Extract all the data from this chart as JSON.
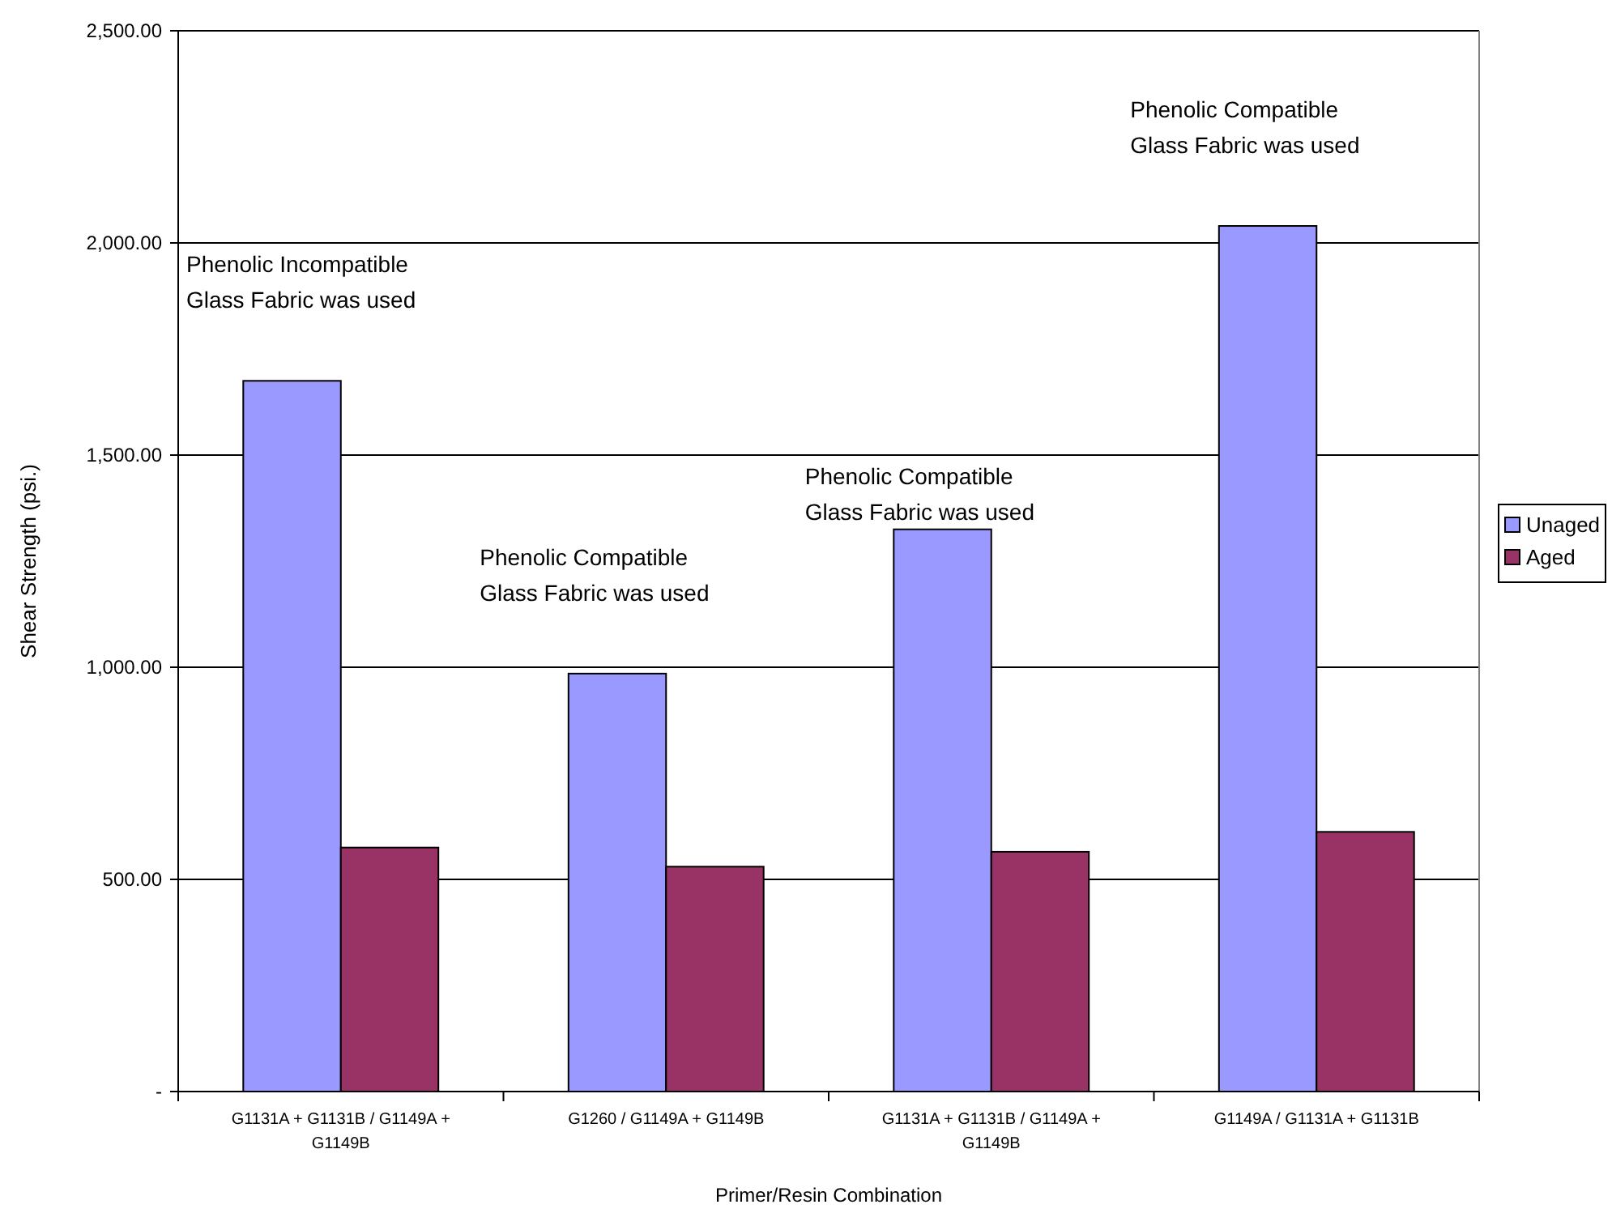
{
  "chart_data": {
    "type": "bar",
    "xlabel": "Primer/Resin Combination",
    "ylabel": "Shear Strength (psi.)",
    "categories": [
      "G1131A + G1131B / G1149A + G1149B",
      "G1260 / G1149A + G1149B",
      "G1131A + G1131B / G1149A + G1149B",
      "G1149A / G1131A + G1131B"
    ],
    "series": [
      {
        "name": "Unaged",
        "color": "#9999ff",
        "values": [
          1675,
          985,
          1325,
          2040
        ]
      },
      {
        "name": "Aged",
        "color": "#993366",
        "values": [
          575,
          530,
          565,
          612
        ]
      }
    ],
    "ylim": [
      0,
      2500
    ],
    "yticks": [
      {
        "value": 0,
        "label": "-"
      },
      {
        "value": 500,
        "label": "500.00"
      },
      {
        "value": 1000,
        "label": "1,000.00"
      },
      {
        "value": 1500,
        "label": "1,500.00"
      },
      {
        "value": 2000,
        "label": "2,000.00"
      },
      {
        "value": 2500,
        "label": "2,500.00"
      }
    ],
    "grid": "y",
    "legend": "right",
    "annotations": [
      "Phenolic Incompatible\nGlass Fabric was used",
      "Phenolic Compatible\nGlass Fabric was used",
      "Phenolic Compatible\nGlass Fabric was used",
      "Phenolic Compatible\nGlass Fabric was used"
    ]
  }
}
